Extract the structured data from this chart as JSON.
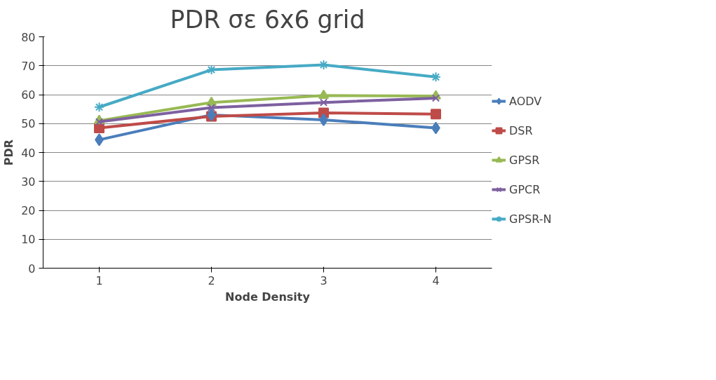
{
  "chart_data": {
    "type": "line",
    "title": "PDR σε 6x6 grid",
    "xlabel": "Node Density",
    "ylabel": "PDR",
    "categories": [
      "1",
      "2",
      "3",
      "4"
    ],
    "series": [
      {
        "name": "AODV",
        "color": "#4a7ebb",
        "values": [
          44.4,
          53,
          51.3,
          48.5
        ],
        "marker": "diamond"
      },
      {
        "name": "DSR",
        "color": "#be4b48",
        "values": [
          48.5,
          52.5,
          53.7,
          53.3
        ],
        "marker": "square"
      },
      {
        "name": "GPSR",
        "color": "#98b954",
        "values": [
          51,
          57.3,
          59.7,
          59.5
        ],
        "marker": "triangle"
      },
      {
        "name": "GPCR",
        "color": "#7d60a0",
        "values": [
          50.6,
          55.5,
          57.3,
          58.8
        ],
        "marker": "cross"
      },
      {
        "name": "GPSR-N",
        "color": "#46aac5",
        "values": [
          55.7,
          68.6,
          70.3,
          66.1
        ],
        "marker": "cross"
      }
    ],
    "ylim": [
      0,
      80
    ],
    "yticks": [
      0,
      10,
      20,
      30,
      40,
      50,
      60,
      70,
      80
    ],
    "grid": "y",
    "legend": "right"
  }
}
